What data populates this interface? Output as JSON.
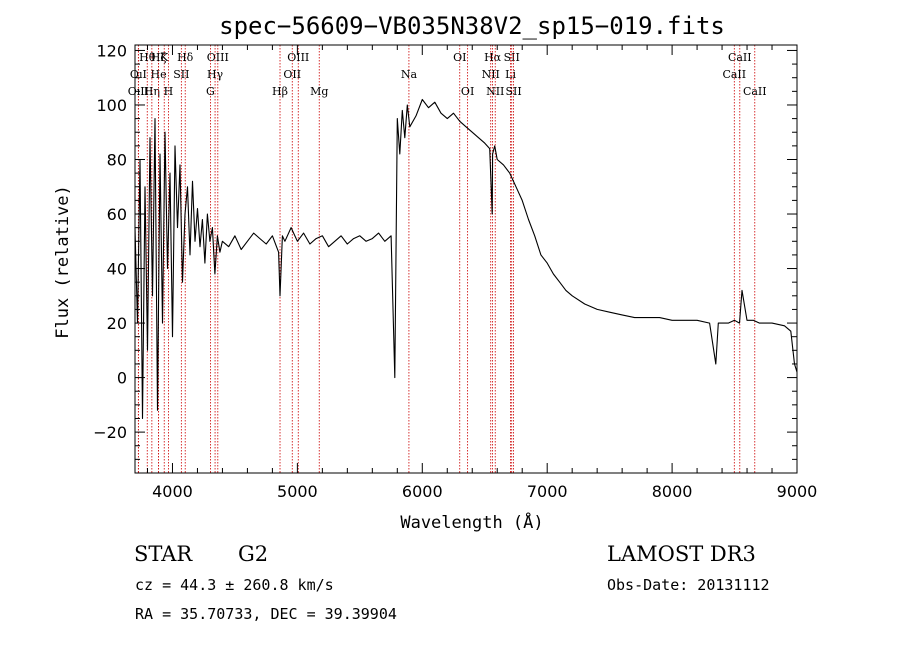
{
  "chart_data": {
    "type": "line",
    "title": "spec−56609−VB035N38V2_sp15−019.fits",
    "xlabel": "Wavelength (Å)",
    "ylabel": "Flux (relative)",
    "xlim": [
      3700,
      9000
    ],
    "ylim": [
      -35,
      122
    ],
    "xticks": [
      4000,
      5000,
      6000,
      7000,
      8000,
      9000
    ],
    "yticks": [
      -20,
      0,
      20,
      40,
      60,
      80,
      100,
      120
    ],
    "ytick_labels": [
      "−20",
      "0",
      "20",
      "40",
      "60",
      "80",
      "100",
      "120"
    ],
    "grid": false,
    "series": [
      {
        "color": "#000000",
        "x": [
          3700,
          3720,
          3740,
          3760,
          3780,
          3800,
          3820,
          3840,
          3860,
          3880,
          3900,
          3920,
          3940,
          3960,
          3980,
          4000,
          4020,
          4040,
          4060,
          4080,
          4100,
          4120,
          4140,
          4160,
          4180,
          4200,
          4220,
          4240,
          4260,
          4280,
          4300,
          4320,
          4340,
          4360,
          4380,
          4400,
          4450,
          4500,
          4550,
          4600,
          4650,
          4700,
          4750,
          4800,
          4850,
          4861,
          4880,
          4900,
          4950,
          5000,
          5050,
          5100,
          5150,
          5200,
          5250,
          5300,
          5350,
          5400,
          5450,
          5500,
          5550,
          5600,
          5650,
          5700,
          5750,
          5780,
          5800,
          5820,
          5840,
          5860,
          5880,
          5900,
          5950,
          6000,
          6050,
          6100,
          6150,
          6200,
          6250,
          6300,
          6350,
          6400,
          6450,
          6500,
          6540,
          6560,
          6563,
          6580,
          6600,
          6650,
          6700,
          6750,
          6800,
          6850,
          6900,
          6950,
          7000,
          7050,
          7100,
          7150,
          7200,
          7300,
          7400,
          7500,
          7600,
          7700,
          7800,
          7900,
          8000,
          8100,
          8200,
          8300,
          8350,
          8370,
          8400,
          8450,
          8500,
          8540,
          8560,
          8600,
          8650,
          8700,
          8800,
          8900,
          8950,
          8980,
          9000
        ],
        "y": [
          55,
          20,
          80,
          -15,
          70,
          10,
          88,
          30,
          95,
          -12,
          82,
          20,
          90,
          40,
          75,
          15,
          85,
          55,
          78,
          35,
          60,
          70,
          45,
          72,
          50,
          62,
          48,
          58,
          42,
          60,
          50,
          55,
          38,
          52,
          46,
          50,
          48,
          52,
          47,
          50,
          53,
          51,
          49,
          52,
          46,
          30,
          52,
          50,
          55,
          50,
          53,
          49,
          51,
          52,
          48,
          50,
          52,
          49,
          51,
          52,
          50,
          51,
          53,
          50,
          52,
          0,
          95,
          82,
          98,
          88,
          100,
          92,
          96,
          102,
          99,
          101,
          97,
          95,
          97,
          94,
          92,
          90,
          88,
          86,
          84,
          60,
          82,
          85,
          80,
          78,
          75,
          70,
          65,
          58,
          52,
          45,
          42,
          38,
          35,
          32,
          30,
          27,
          25,
          24,
          23,
          22,
          22,
          22,
          21,
          21,
          21,
          20,
          5,
          20,
          20,
          20,
          21,
          20,
          32,
          21,
          21,
          20,
          20,
          19,
          17,
          5,
          2
        ]
      }
    ],
    "line_markers": [
      {
        "label": "Hθ",
        "x": 3798,
        "row": 1
      },
      {
        "label": "OıI",
        "x": 3727,
        "row": 2
      },
      {
        "label": "OıII",
        "x": 3727,
        "row": 3
      },
      {
        "label": "K",
        "x": 3934,
        "row": 1
      },
      {
        "label": "He",
        "x": 3889,
        "row": 2
      },
      {
        "label": "Hη",
        "x": 3835,
        "row": 3
      },
      {
        "label": "Hζ",
        "x": 3889,
        "row": 1
      },
      {
        "label": "SII",
        "x": 4071,
        "row": 2
      },
      {
        "label": "H",
        "x": 3968,
        "row": 3
      },
      {
        "label": "Hδ",
        "x": 4102,
        "row": 1
      },
      {
        "label": "OIII",
        "x": 4363,
        "row": 1
      },
      {
        "label": "Hγ",
        "x": 4341,
        "row": 2
      },
      {
        "label": "G",
        "x": 4304,
        "row": 3
      },
      {
        "label": "Hβ",
        "x": 4861,
        "row": 3
      },
      {
        "label": "OIII",
        "x": 5007,
        "row": 1
      },
      {
        "label": "OII",
        "x": 4959,
        "row": 2
      },
      {
        "label": "Mg",
        "x": 5175,
        "row": 3
      },
      {
        "label": "Na",
        "x": 5893,
        "row": 2
      },
      {
        "label": "OI",
        "x": 6300,
        "row": 1
      },
      {
        "label": "OI",
        "x": 6363,
        "row": 3
      },
      {
        "label": "Hα",
        "x": 6563,
        "row": 1
      },
      {
        "label": "NII",
        "x": 6548,
        "row": 2
      },
      {
        "label": "NII",
        "x": 6584,
        "row": 3
      },
      {
        "label": "SII",
        "x": 6716,
        "row": 1
      },
      {
        "label": "Li",
        "x": 6707,
        "row": 2
      },
      {
        "label": "SII",
        "x": 6731,
        "row": 3
      },
      {
        "label": "CaII",
        "x": 8542,
        "row": 1
      },
      {
        "label": "CaII",
        "x": 8498,
        "row": 2
      },
      {
        "label": "CaII",
        "x": 8662,
        "row": 3
      }
    ]
  },
  "info": {
    "class": "STAR",
    "subclass": "G2",
    "survey": "LAMOST DR3",
    "cz": "cz = 44.3 ± 260.8 km/s",
    "obs_date": "Obs-Date: 20131112",
    "coords": "RA =  35.70733, DEC =  39.39904"
  }
}
